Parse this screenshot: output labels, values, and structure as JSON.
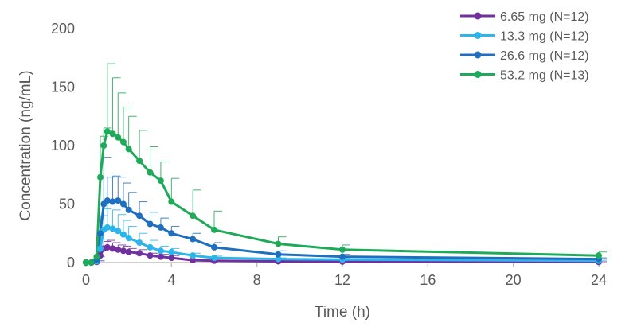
{
  "chart_data": {
    "type": "line",
    "title": "",
    "xlabel": "Time (h)",
    "ylabel": "Concentration (ng/mL)",
    "xlim": [
      0,
      24
    ],
    "ylim": [
      0,
      200
    ],
    "xticks": [
      0,
      4,
      8,
      12,
      16,
      20,
      24
    ],
    "yticks": [
      0,
      50,
      100,
      150,
      200
    ],
    "grid": false,
    "legend_position": "top-right",
    "x": [
      0,
      0.25,
      0.5,
      0.67,
      0.83,
      1,
      1.25,
      1.5,
      1.75,
      2,
      2.5,
      3,
      3.5,
      4,
      5,
      6,
      9,
      12,
      24
    ],
    "series": [
      {
        "name": "6.65 mg (N=12)",
        "color": "#7030a0",
        "values": [
          0,
          0,
          0.5,
          6,
          12,
          13,
          12,
          11,
          10,
          9,
          8,
          6,
          5,
          4,
          2,
          1.5,
          1,
          0.8,
          0.5
        ],
        "errors": [
          0,
          0,
          1,
          4,
          6,
          6,
          5,
          4,
          4,
          3,
          3,
          2,
          2,
          2,
          1,
          0.5,
          0.4,
          0.3,
          0.2
        ]
      },
      {
        "name": "13.3 mg (N=12)",
        "color": "#2bb5ea",
        "values": [
          0,
          0,
          1,
          12,
          28,
          30,
          29,
          27,
          24,
          21,
          17,
          13,
          10,
          9,
          6,
          4,
          3,
          2.5,
          1.5
        ],
        "errors": [
          0,
          0,
          2,
          8,
          18,
          20,
          16,
          14,
          12,
          10,
          8,
          6,
          4,
          3,
          2,
          1.5,
          1,
          1,
          0.5
        ]
      },
      {
        "name": "26.6 mg (N=12)",
        "color": "#1f6fc0",
        "values": [
          0,
          0,
          2,
          25,
          50,
          53,
          52,
          53,
          50,
          45,
          40,
          33,
          30,
          25,
          20,
          13,
          7,
          5,
          3
        ],
        "errors": [
          0,
          0,
          3,
          15,
          40,
          20,
          22,
          20,
          18,
          15,
          12,
          10,
          8,
          6,
          5,
          4,
          3,
          2,
          1
        ]
      },
      {
        "name": "53.2 mg (N=13)",
        "color": "#1faa5a",
        "values": [
          0,
          0,
          5,
          73,
          100,
          112,
          110,
          107,
          103,
          97,
          87,
          77,
          70,
          52,
          40,
          28,
          16,
          11,
          6
        ],
        "errors": [
          0,
          0,
          8,
          35,
          15,
          58,
          48,
          38,
          30,
          28,
          26,
          22,
          16,
          20,
          22,
          16,
          6,
          4,
          3
        ]
      }
    ]
  }
}
